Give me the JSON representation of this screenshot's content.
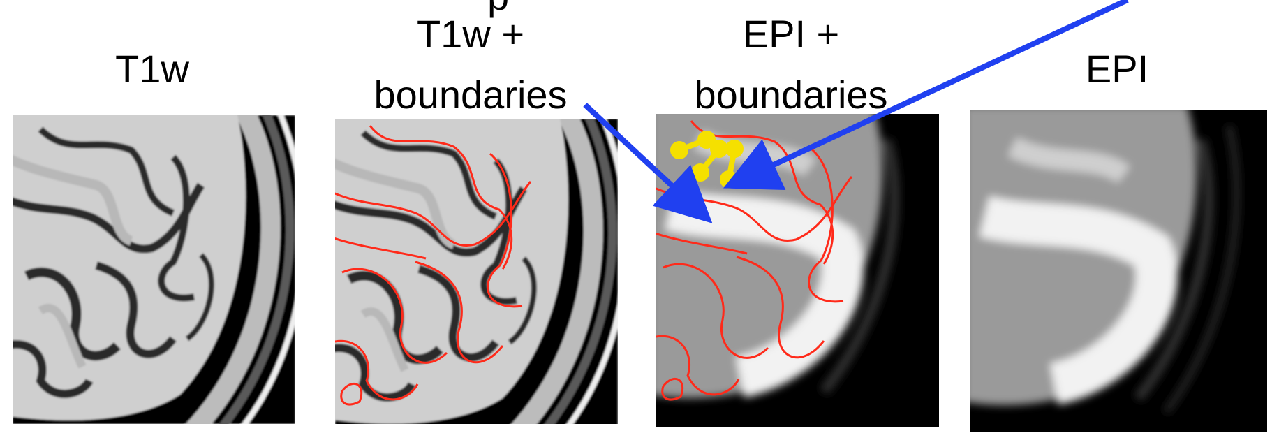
{
  "figure": {
    "header_fragment": "p",
    "panels": [
      {
        "id": "t1w",
        "title_lines": [
          "T1w"
        ]
      },
      {
        "id": "t1w-boundaries",
        "title_lines": [
          "T1w +",
          "boundaries"
        ]
      },
      {
        "id": "epi-boundaries",
        "title_lines": [
          "EPI +",
          "boundaries"
        ]
      },
      {
        "id": "epi",
        "title_lines": [
          "EPI"
        ]
      }
    ]
  },
  "colors": {
    "boundary": "#ff2a1a",
    "arrow": "#2040f0",
    "marker": "#f5e000",
    "tissue_light": "#d6d6d6",
    "tissue_dark": "#202020",
    "background": "#000000"
  },
  "icons": {
    "arrow_1": "arrow-icon",
    "arrow_2": "arrow-icon",
    "markers": "dot-pair-marker-icon"
  }
}
